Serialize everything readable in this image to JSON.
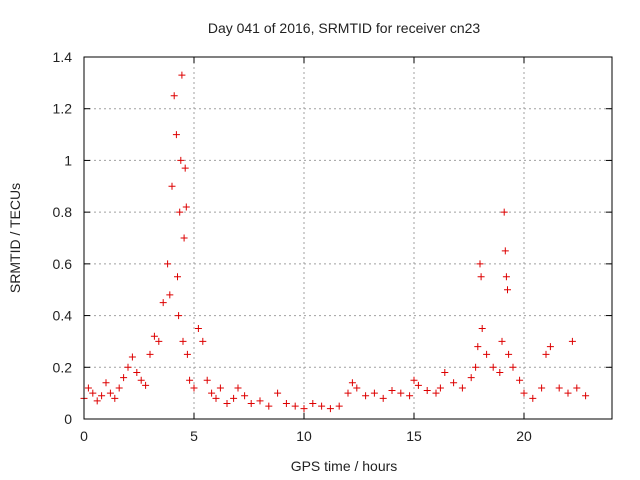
{
  "chart_data": {
    "type": "scatter",
    "title": "Day 041 of 2016, SRMTID for receiver cn23",
    "xlabel": "GPS time / hours",
    "ylabel": "SRMTID / TECUs",
    "xlim": [
      0,
      24
    ],
    "ylim": [
      0,
      1.4
    ],
    "xticks": [
      0,
      5,
      10,
      15,
      20
    ],
    "yticks": [
      0,
      0.2,
      0.4,
      0.6,
      0.8,
      1,
      1.2,
      1.4
    ],
    "xtick_labels": [
      "0",
      "5",
      "10",
      "15",
      "20"
    ],
    "ytick_labels": [
      "0",
      "0.2",
      "0.4",
      "0.6",
      "0.8",
      "1",
      "1.2",
      "1.4"
    ],
    "grid": true,
    "legend": "none",
    "marker": "+",
    "series": [
      {
        "name": "SRMTID",
        "color": "#dd0000",
        "x": [
          0.0,
          0.2,
          0.4,
          0.6,
          0.8,
          1.0,
          1.2,
          1.4,
          1.6,
          1.8,
          2.0,
          2.2,
          2.4,
          2.6,
          2.8,
          3.0,
          3.2,
          3.4,
          3.6,
          3.8,
          3.9,
          4.0,
          4.1,
          4.2,
          4.25,
          4.3,
          4.35,
          4.4,
          4.45,
          4.5,
          4.55,
          4.6,
          4.65,
          4.7,
          4.8,
          5.0,
          5.2,
          5.4,
          5.6,
          5.8,
          6.0,
          6.2,
          6.5,
          6.8,
          7.0,
          7.3,
          7.6,
          8.0,
          8.4,
          8.8,
          9.2,
          9.6,
          10.0,
          10.4,
          10.8,
          11.2,
          11.6,
          12.0,
          12.2,
          12.4,
          12.8,
          13.2,
          13.6,
          14.0,
          14.4,
          14.8,
          15.0,
          15.2,
          15.6,
          16.0,
          16.2,
          16.4,
          16.8,
          17.2,
          17.6,
          17.8,
          17.9,
          18.0,
          18.05,
          18.1,
          18.3,
          18.6,
          18.9,
          19.0,
          19.1,
          19.15,
          19.2,
          19.25,
          19.3,
          19.5,
          19.8,
          20.0,
          20.4,
          20.8,
          21.0,
          21.2,
          21.6,
          22.0,
          22.2,
          22.4,
          22.8
        ],
        "y": [
          0.08,
          0.12,
          0.1,
          0.07,
          0.09,
          0.14,
          0.1,
          0.08,
          0.12,
          0.16,
          0.2,
          0.24,
          0.18,
          0.15,
          0.13,
          0.25,
          0.32,
          0.3,
          0.45,
          0.6,
          0.48,
          0.9,
          1.25,
          1.1,
          0.55,
          0.4,
          0.8,
          1.0,
          1.33,
          0.3,
          0.7,
          0.97,
          0.82,
          0.25,
          0.15,
          0.12,
          0.35,
          0.3,
          0.15,
          0.1,
          0.08,
          0.12,
          0.06,
          0.08,
          0.12,
          0.09,
          0.06,
          0.07,
          0.05,
          0.1,
          0.06,
          0.05,
          0.04,
          0.06,
          0.05,
          0.04,
          0.05,
          0.1,
          0.14,
          0.12,
          0.09,
          0.1,
          0.08,
          0.11,
          0.1,
          0.09,
          0.15,
          0.13,
          0.11,
          0.1,
          0.12,
          0.18,
          0.14,
          0.12,
          0.16,
          0.2,
          0.28,
          0.6,
          0.55,
          0.35,
          0.25,
          0.2,
          0.18,
          0.3,
          0.8,
          0.65,
          0.55,
          0.5,
          0.25,
          0.2,
          0.15,
          0.1,
          0.08,
          0.12,
          0.25,
          0.28,
          0.12,
          0.1,
          0.3,
          0.12,
          0.09
        ]
      }
    ]
  }
}
